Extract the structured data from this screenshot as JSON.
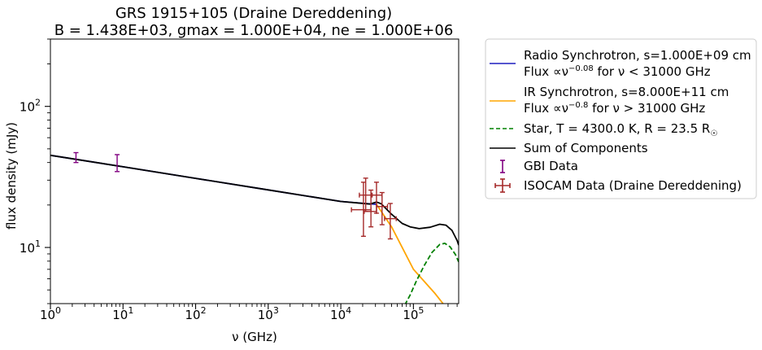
{
  "chart_data": {
    "type": "line",
    "title": "GRS 1915+105 (Draine Dereddening)",
    "subtitle": "B = 1.438E+03, gmax = 1.000E+04, ne = 1.000E+06",
    "xlabel": "ν (GHz)",
    "ylabel": "flux density (mJy)",
    "xscale": "log",
    "yscale": "log",
    "xlim": [
      1,
      420000
    ],
    "ylim": [
      4,
      300
    ],
    "x_ticks": [
      {
        "value": 1,
        "label": "10",
        "exp": "0"
      },
      {
        "value": 10,
        "label": "10",
        "exp": "1"
      },
      {
        "value": 100,
        "label": "10",
        "exp": "2"
      },
      {
        "value": 1000,
        "label": "10",
        "exp": "3"
      },
      {
        "value": 10000,
        "label": "10",
        "exp": "4"
      },
      {
        "value": 100000,
        "label": "10",
        "exp": "5"
      }
    ],
    "y_ticks": [
      {
        "value": 10,
        "label": "10",
        "exp": "1"
      },
      {
        "value": 100,
        "label": "10",
        "exp": "2"
      }
    ],
    "grid": false,
    "legend_position": "outside-right",
    "series": [
      {
        "name_line1": "Radio Synchrotron, s=1.000E+09 cm",
        "name_line2_a": "Flux ∝ν",
        "name_line2_exp": "−0.08",
        "name_line2_b": " for ν <  31000 GHz",
        "color": "#1f1fbf",
        "style": "solid",
        "x": [
          1,
          10,
          100,
          1000,
          10000,
          31000
        ],
        "y": [
          45.0,
          37.3,
          30.9,
          25.6,
          21.2,
          20.2
        ]
      },
      {
        "name_line1": "IR Synchrotron, s=8.000E+11 cm",
        "name_line2_a": "Flux ∝ν",
        "name_line2_exp": "−0.8",
        "name_line2_b": " for ν >  31000 GHz",
        "color": "#ffa500",
        "style": "solid",
        "x": [
          31000,
          50000,
          100000,
          200000,
          300000
        ],
        "y": [
          20.2,
          14.0,
          7.0,
          4.7,
          3.6
        ]
      },
      {
        "name": "Star, T = 4300.0 K, R = 23.5 R",
        "name_sub": "☉",
        "color": "#008000",
        "style": "dashed",
        "x": [
          76000,
          90000,
          110000,
          140000,
          180000,
          230000,
          270000,
          320000,
          380000,
          420000
        ],
        "y": [
          3.9,
          4.6,
          5.8,
          7.4,
          9.2,
          10.5,
          10.7,
          10.1,
          8.9,
          7.9
        ]
      },
      {
        "name": "Sum of Components",
        "color": "#000000",
        "style": "solid",
        "x": [
          1,
          10,
          100,
          1000,
          10000,
          25000,
          31000,
          36000,
          50000,
          70000,
          90000,
          120000,
          170000,
          230000,
          280000,
          340000,
          400000,
          420000
        ],
        "y": [
          45.0,
          37.3,
          30.9,
          25.6,
          21.2,
          20.3,
          21.0,
          20.4,
          17.2,
          14.8,
          14.0,
          13.6,
          13.9,
          14.6,
          14.4,
          13.2,
          11.2,
          10.4
        ]
      }
    ],
    "errorbar_series": [
      {
        "name": "GBI Data",
        "color": "#800080",
        "points": [
          {
            "x": 2.25,
            "y": 43.5,
            "ylo": 40.0,
            "yhi": 47.0
          },
          {
            "x": 8.3,
            "y": 38.5,
            "ylo": 34.5,
            "yhi": 45.5
          }
        ]
      },
      {
        "name": "ISOCAM Data (Draine Dereddening)",
        "color": "#a52a2a",
        "points": [
          {
            "x": 20500,
            "y": 18.5,
            "ylo": 12.0,
            "yhi": 29.0,
            "xlo": 14000,
            "xhi": 26000
          },
          {
            "x": 22000,
            "y": 23.5,
            "ylo": 18.0,
            "yhi": 31.0,
            "xlo": 18000,
            "xhi": 27000
          },
          {
            "x": 26000,
            "y": 18.0,
            "ylo": 14.0,
            "yhi": 25.5,
            "xlo": 21000,
            "xhi": 31000
          },
          {
            "x": 31000,
            "y": 23.5,
            "ylo": 17.5,
            "yhi": 29.0,
            "xlo": 26000,
            "xhi": 37000
          },
          {
            "x": 37000,
            "y": 19.5,
            "ylo": 14.5,
            "yhi": 24.5,
            "xlo": 31000,
            "xhi": 44000
          },
          {
            "x": 48000,
            "y": 16.0,
            "ylo": 11.5,
            "yhi": 20.5,
            "xlo": 40000,
            "xhi": 58000
          }
        ]
      }
    ]
  }
}
